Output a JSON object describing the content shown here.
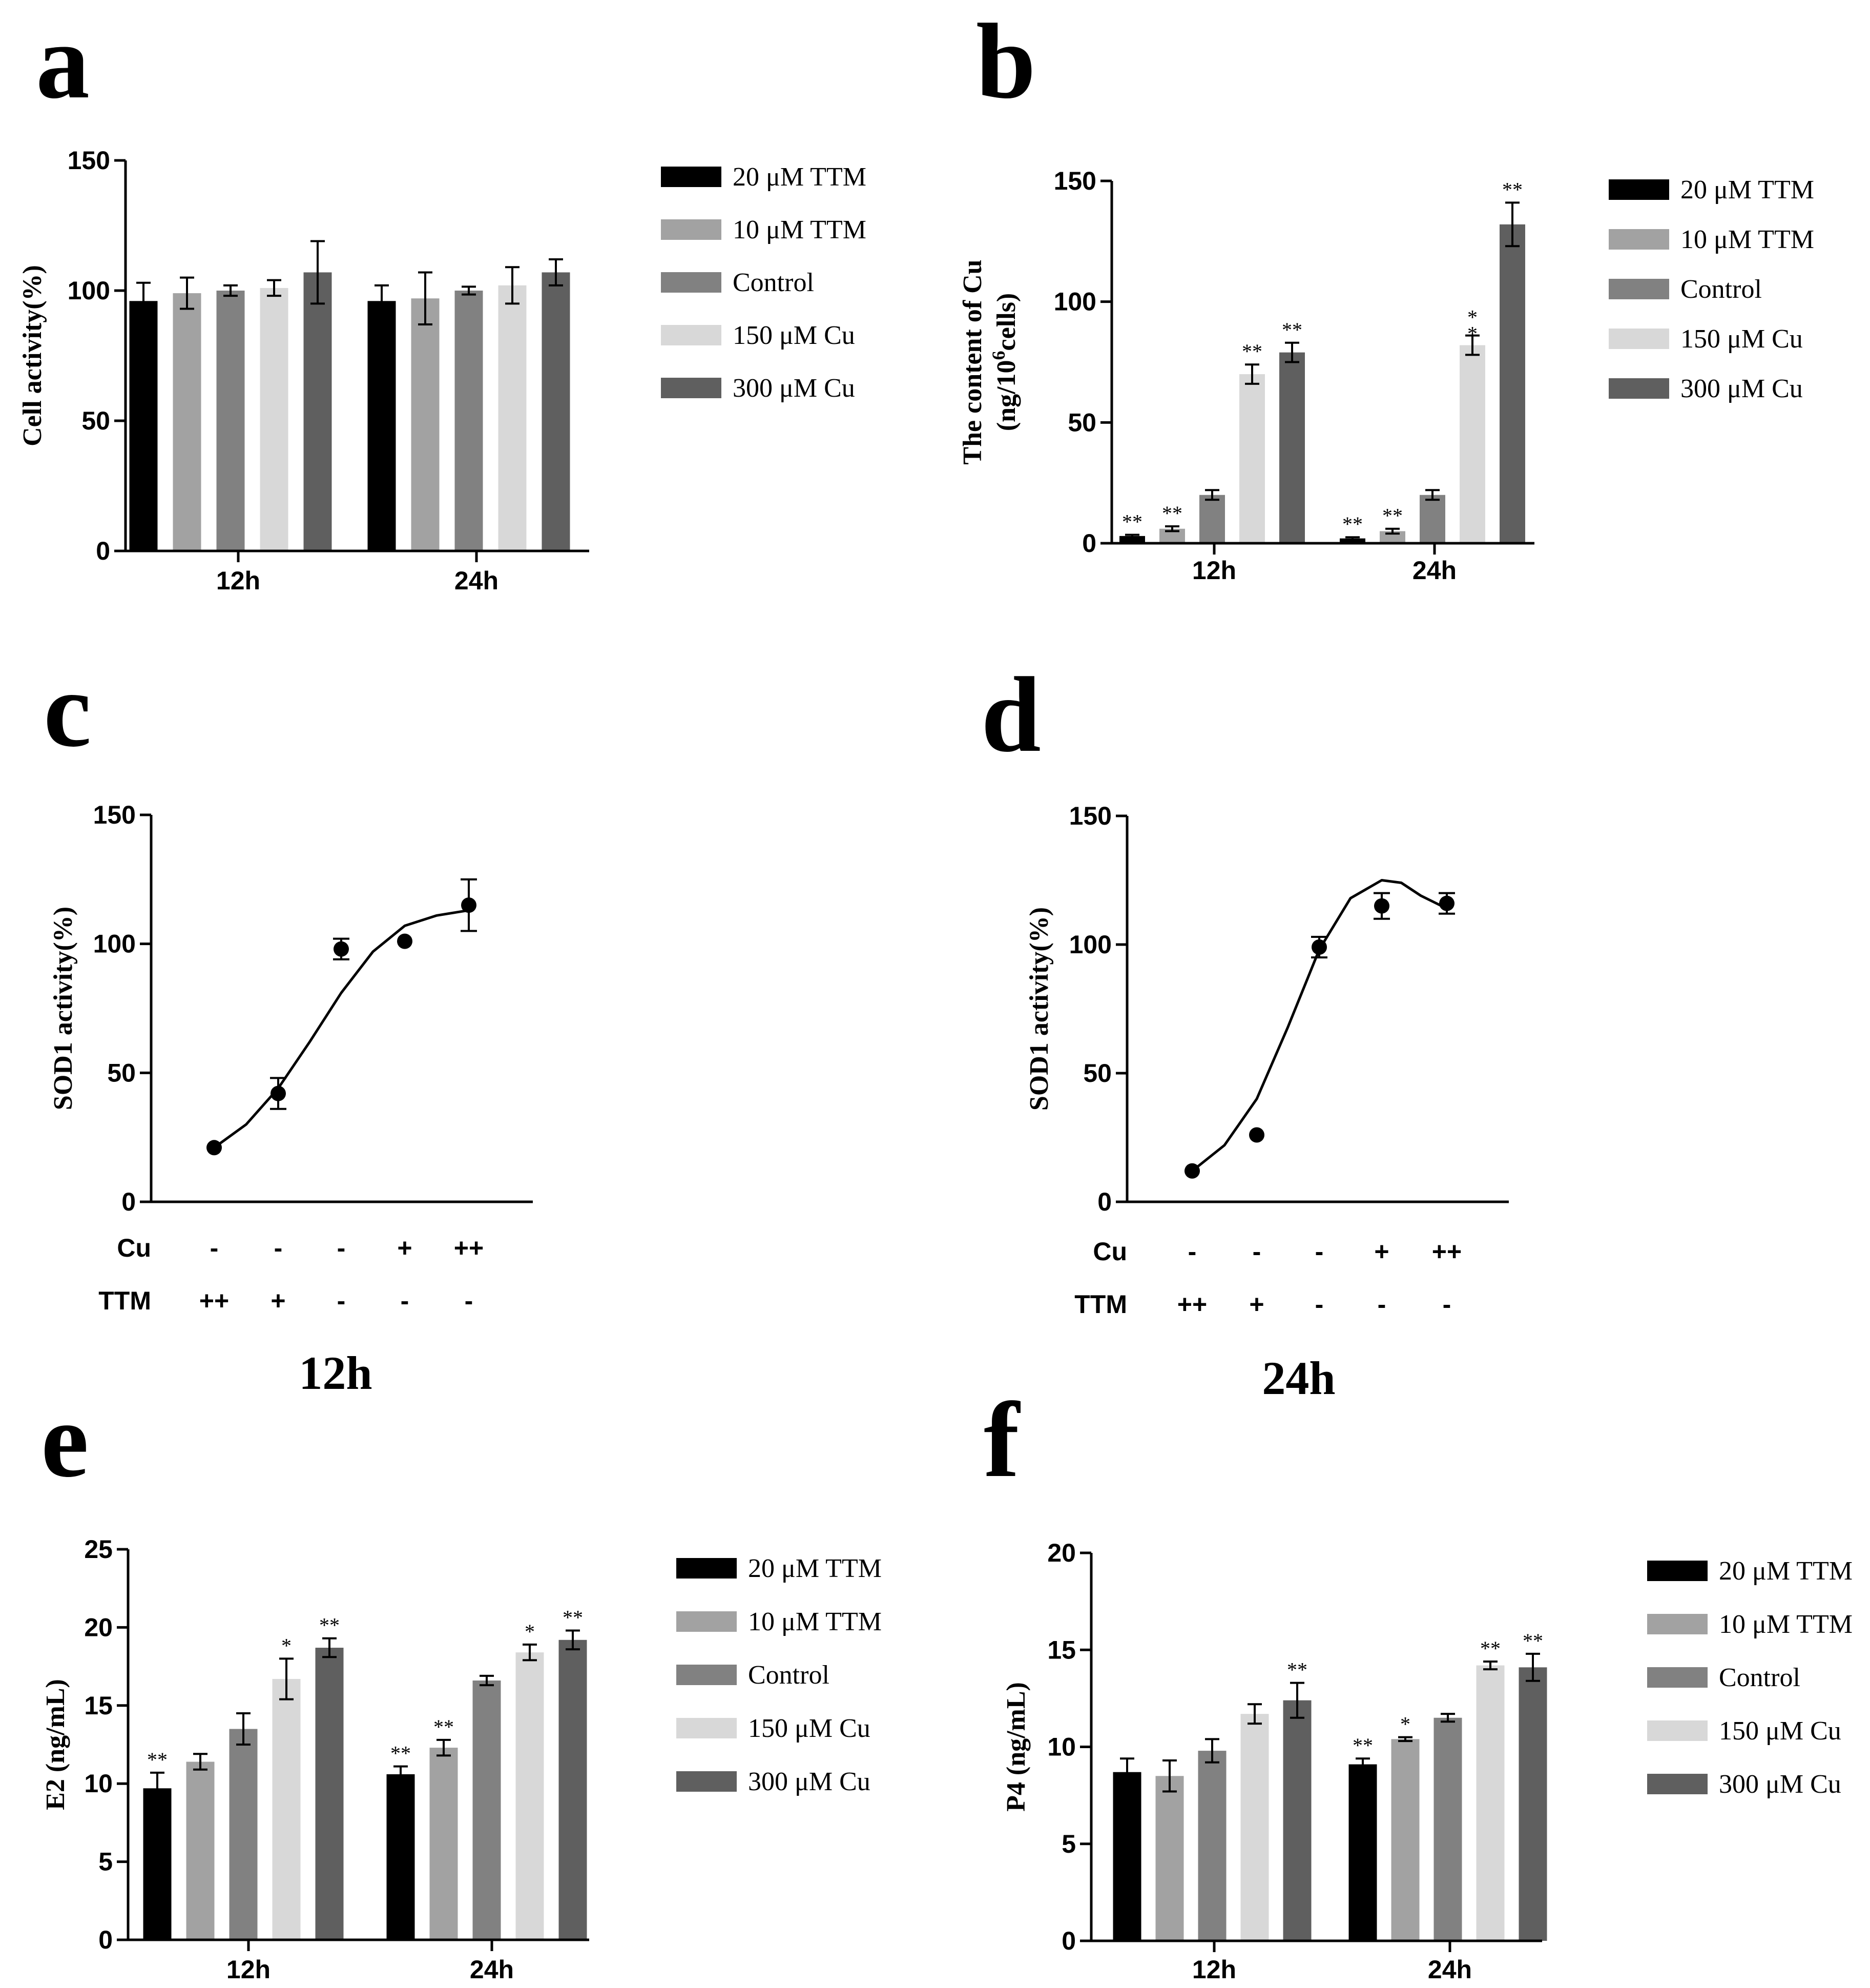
{
  "colors": {
    "20 μM TTM": "#000000",
    "10 μM TTM": "#a2a2a2",
    "Control": "#818181",
    "150 μM Cu": "#d8d8d8",
    "300 μM Cu": "#5f5f5f"
  },
  "chart_data": [
    {
      "panel": "a",
      "type": "bar",
      "ylabel": "Cell activity(%)",
      "ylim": [
        0,
        150
      ],
      "yticks": [
        "0",
        "50",
        "100",
        "150"
      ],
      "categories": [
        "12h",
        "24h"
      ],
      "series": [
        {
          "name": "20 μM TTM",
          "values": [
            96,
            96
          ],
          "errors": [
            7,
            6
          ],
          "stars": [
            "",
            ""
          ]
        },
        {
          "name": "10 μM TTM",
          "values": [
            99,
            97
          ],
          "errors": [
            6,
            10
          ],
          "stars": [
            "",
            ""
          ]
        },
        {
          "name": "Control",
          "values": [
            100,
            100
          ],
          "errors": [
            2,
            1.5
          ],
          "stars": [
            "",
            ""
          ]
        },
        {
          "name": "150 μM Cu",
          "values": [
            101,
            102
          ],
          "errors": [
            3,
            7
          ],
          "stars": [
            "",
            ""
          ]
        },
        {
          "name": "300 μM Cu",
          "values": [
            107,
            107
          ],
          "errors": [
            12,
            5
          ],
          "stars": [
            "",
            ""
          ]
        }
      ]
    },
    {
      "panel": "b",
      "type": "bar",
      "ylabel": "The content of Cu (ng/10^6 cells)",
      "ylabel_line1": "The content of Cu",
      "ylabel_line2": {
        "pre": "(ng/10",
        "sup": "6",
        "post": "cells)"
      },
      "ylim": [
        0,
        150
      ],
      "yticks": [
        "0",
        "50",
        "100",
        "150"
      ],
      "categories": [
        "12h",
        "24h"
      ],
      "series": [
        {
          "name": "20 μM TTM",
          "values": [
            3,
            2
          ],
          "errors": [
            0.5,
            0.5
          ],
          "stars": [
            "**",
            "**"
          ]
        },
        {
          "name": "10 μM TTM",
          "values": [
            6,
            5
          ],
          "errors": [
            1,
            1
          ],
          "stars": [
            "**",
            "**"
          ]
        },
        {
          "name": "Control",
          "values": [
            20,
            20
          ],
          "errors": [
            2,
            2
          ],
          "stars": [
            "",
            ""
          ]
        },
        {
          "name": "150 μM Cu",
          "values": [
            70,
            82
          ],
          "errors": [
            4,
            4
          ],
          "stars": [
            "**",
            "*\n*"
          ]
        },
        {
          "name": "300 μM Cu",
          "values": [
            79,
            132
          ],
          "errors": [
            4,
            9
          ],
          "stars": [
            "**",
            "**"
          ]
        }
      ]
    },
    {
      "panel": "c",
      "type": "scatter",
      "title": "12h",
      "ylabel": "SOD1 activity(%)",
      "ylim": [
        0,
        150
      ],
      "yticks": [
        "0",
        "50",
        "100",
        "150"
      ],
      "cu_label": "Cu",
      "ttm_label": "TTM",
      "cu": [
        "-",
        "-",
        "-",
        "+",
        "++"
      ],
      "ttm": [
        "++",
        "+",
        "-",
        "-",
        "-"
      ],
      "values": [
        21,
        42,
        98,
        101,
        115
      ],
      "errors": [
        0,
        6,
        4,
        0,
        10
      ],
      "curve": [
        [
          0,
          21
        ],
        [
          0.5,
          30
        ],
        [
          1,
          44
        ],
        [
          1.5,
          62
        ],
        [
          2,
          81
        ],
        [
          2.5,
          97
        ],
        [
          3,
          107
        ],
        [
          3.5,
          111
        ],
        [
          4,
          113
        ]
      ]
    },
    {
      "panel": "d",
      "type": "scatter",
      "title": "24h",
      "ylabel": "SOD1 activity(%)",
      "ylim": [
        0,
        150
      ],
      "yticks": [
        "0",
        "50",
        "100",
        "150"
      ],
      "cu_label": "Cu",
      "ttm_label": "TTM",
      "cu": [
        "-",
        "-",
        "-",
        "+",
        "++"
      ],
      "ttm": [
        "++",
        "+",
        "-",
        "-",
        "-"
      ],
      "values": [
        12,
        26,
        99,
        115,
        116
      ],
      "errors": [
        0,
        0,
        4,
        5,
        4
      ],
      "curve": [
        [
          0,
          12
        ],
        [
          0.5,
          22
        ],
        [
          1,
          40
        ],
        [
          1.5,
          68
        ],
        [
          2,
          98
        ],
        [
          2.5,
          118
        ],
        [
          3,
          125
        ],
        [
          3.3,
          124
        ],
        [
          3.6,
          119
        ],
        [
          4,
          114
        ]
      ]
    },
    {
      "panel": "e",
      "type": "bar",
      "ylabel": "E2 (ng/mL)",
      "ylim": [
        0,
        25
      ],
      "yticks": [
        "0",
        "5",
        "10",
        "15",
        "20",
        "25"
      ],
      "categories": [
        "12h",
        "24h"
      ],
      "series": [
        {
          "name": "20 μM TTM",
          "values": [
            9.7,
            10.6
          ],
          "errors": [
            1.0,
            0.5
          ],
          "stars": [
            "**",
            "**"
          ]
        },
        {
          "name": "10 μM TTM",
          "values": [
            11.4,
            12.3
          ],
          "errors": [
            0.5,
            0.5
          ],
          "stars": [
            "",
            "**"
          ]
        },
        {
          "name": "Control",
          "values": [
            13.5,
            16.6
          ],
          "errors": [
            1.0,
            0.3
          ],
          "stars": [
            "",
            ""
          ]
        },
        {
          "name": "150 μM Cu",
          "values": [
            16.7,
            18.4
          ],
          "errors": [
            1.3,
            0.5
          ],
          "stars": [
            "*",
            "*"
          ]
        },
        {
          "name": "300 μM Cu",
          "values": [
            18.7,
            19.2
          ],
          "errors": [
            0.6,
            0.6
          ],
          "stars": [
            "**",
            "**"
          ]
        }
      ]
    },
    {
      "panel": "f",
      "type": "bar",
      "ylabel": "P4 (ng/mL)",
      "ylim": [
        0,
        20
      ],
      "yticks": [
        "0",
        "5",
        "10",
        "15",
        "20"
      ],
      "categories": [
        "12h",
        "24h"
      ],
      "series": [
        {
          "name": "20 μM TTM",
          "values": [
            8.7,
            9.1
          ],
          "errors": [
            0.7,
            0.3
          ],
          "stars": [
            "",
            "**"
          ]
        },
        {
          "name": "10 μM TTM",
          "values": [
            8.5,
            10.4
          ],
          "errors": [
            0.8,
            0.1
          ],
          "stars": [
            "",
            "*"
          ]
        },
        {
          "name": "Control",
          "values": [
            9.8,
            11.5
          ],
          "errors": [
            0.6,
            0.2
          ],
          "stars": [
            "",
            ""
          ]
        },
        {
          "name": "150 μM Cu",
          "values": [
            11.7,
            14.2
          ],
          "errors": [
            0.5,
            0.2
          ],
          "stars": [
            "",
            "**"
          ]
        },
        {
          "name": "300 μM Cu",
          "values": [
            12.4,
            14.1
          ],
          "errors": [
            0.9,
            0.7
          ],
          "stars": [
            "**",
            "**"
          ]
        }
      ]
    }
  ]
}
